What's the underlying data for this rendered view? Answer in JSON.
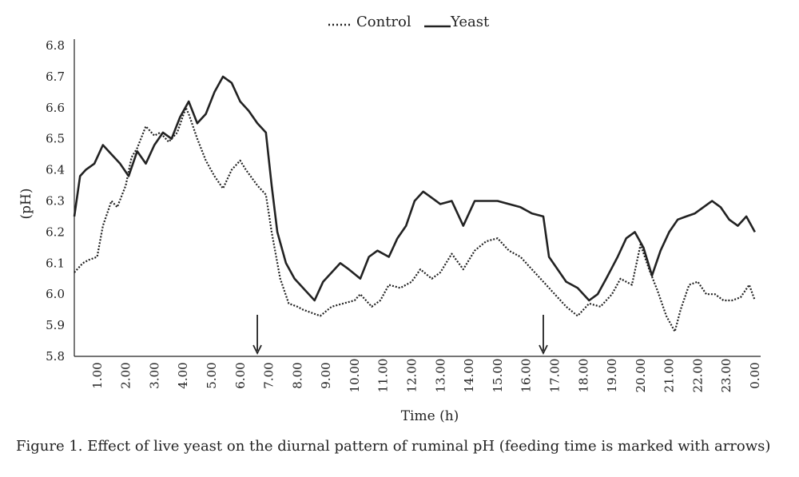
{
  "chart_data": {
    "type": "line",
    "xlabel": "Time (h)",
    "ylabel": "(pH)",
    "ylim": [
      5.8,
      6.8
    ],
    "yticks": [
      "5.8",
      "5.9",
      "6.0",
      "6.1",
      "6.2",
      "6.3",
      "6.4",
      "6.5",
      "6.6",
      "6.7",
      "6.8"
    ],
    "xticks": [
      "1.00",
      "2.00",
      "3.00",
      "4.00",
      "5.00",
      "6.00",
      "7.00",
      "8.00",
      "9.00",
      "10.00",
      "11.00",
      "12.00",
      "13.00",
      "14.00",
      "15.00",
      "16.00",
      "17.00",
      "18.00",
      "19.00",
      "20.00",
      "21.00",
      "22.00",
      "23.00",
      "0.00"
    ],
    "legend_position": "top-center",
    "feeding_times": [
      6.4,
      16.4
    ],
    "series": [
      {
        "name": "Control",
        "style": "dotted",
        "color": "#222222",
        "x": [
          0,
          0.3,
          0.5,
          0.8,
          1.0,
          1.3,
          1.5,
          1.8,
          2.0,
          2.2,
          2.5,
          2.8,
          3.0,
          3.3,
          3.6,
          3.9,
          4.0,
          4.3,
          4.6,
          4.9,
          5.2,
          5.5,
          5.8,
          6.0,
          6.4,
          6.7,
          6.9,
          7.2,
          7.5,
          7.8,
          8.0,
          8.3,
          8.6,
          9.0,
          9.4,
          9.8,
          10.0,
          10.4,
          10.7,
          11.0,
          11.4,
          11.8,
          12.1,
          12.5,
          12.8,
          13.2,
          13.6,
          14.0,
          14.4,
          14.8,
          15.2,
          15.6,
          16.0,
          16.4,
          16.8,
          17.2,
          17.6,
          18.0,
          18.4,
          18.8,
          19.1,
          19.5,
          19.8,
          20.1,
          20.4,
          20.7,
          21.0,
          21.2,
          21.5,
          21.8,
          22.1,
          22.4,
          22.7,
          23.0,
          23.3,
          23.6,
          23.8
        ],
        "y": [
          6.07,
          6.1,
          6.11,
          6.12,
          6.22,
          6.3,
          6.28,
          6.35,
          6.44,
          6.47,
          6.54,
          6.51,
          6.52,
          6.49,
          6.52,
          6.6,
          6.58,
          6.5,
          6.43,
          6.38,
          6.34,
          6.4,
          6.43,
          6.4,
          6.35,
          6.32,
          6.2,
          6.05,
          5.97,
          5.96,
          5.95,
          5.94,
          5.93,
          5.96,
          5.97,
          5.98,
          6.0,
          5.96,
          5.98,
          6.03,
          6.02,
          6.04,
          6.08,
          6.05,
          6.07,
          6.13,
          6.08,
          6.14,
          6.17,
          6.18,
          6.14,
          6.12,
          6.08,
          6.04,
          6.0,
          5.96,
          5.93,
          5.97,
          5.96,
          6.0,
          6.05,
          6.03,
          6.16,
          6.08,
          6.01,
          5.93,
          5.88,
          5.95,
          6.03,
          6.04,
          6.0,
          6.0,
          5.98,
          5.98,
          5.99,
          6.03,
          5.98
        ]
      },
      {
        "name": "Yeast",
        "style": "solid",
        "color": "#222222",
        "x": [
          0,
          0.2,
          0.4,
          0.7,
          1.0,
          1.3,
          1.6,
          1.9,
          2.2,
          2.5,
          2.8,
          3.1,
          3.4,
          3.7,
          4.0,
          4.3,
          4.6,
          4.9,
          5.2,
          5.5,
          5.8,
          6.1,
          6.4,
          6.7,
          6.9,
          7.1,
          7.4,
          7.7,
          8.0,
          8.4,
          8.7,
          9.0,
          9.3,
          9.6,
          10.0,
          10.3,
          10.6,
          11.0,
          11.3,
          11.6,
          11.9,
          12.2,
          12.5,
          12.8,
          13.2,
          13.6,
          14.0,
          14.4,
          14.8,
          15.2,
          15.6,
          16.0,
          16.4,
          16.6,
          16.9,
          17.2,
          17.6,
          18.0,
          18.3,
          18.6,
          19.0,
          19.3,
          19.6,
          19.9,
          20.2,
          20.5,
          20.8,
          21.1,
          21.4,
          21.7,
          22.0,
          22.3,
          22.6,
          22.9,
          23.2,
          23.5,
          23.8
        ],
        "y": [
          6.25,
          6.38,
          6.4,
          6.42,
          6.48,
          6.45,
          6.42,
          6.38,
          6.46,
          6.42,
          6.48,
          6.52,
          6.5,
          6.57,
          6.62,
          6.55,
          6.58,
          6.65,
          6.7,
          6.68,
          6.62,
          6.59,
          6.55,
          6.52,
          6.35,
          6.2,
          6.1,
          6.05,
          6.02,
          5.98,
          6.04,
          6.07,
          6.1,
          6.08,
          6.05,
          6.12,
          6.14,
          6.12,
          6.18,
          6.22,
          6.3,
          6.33,
          6.31,
          6.29,
          6.3,
          6.22,
          6.3,
          6.3,
          6.3,
          6.29,
          6.28,
          6.26,
          6.25,
          6.12,
          6.08,
          6.04,
          6.02,
          5.98,
          6.0,
          6.05,
          6.12,
          6.18,
          6.2,
          6.15,
          6.06,
          6.14,
          6.2,
          6.24,
          6.25,
          6.26,
          6.28,
          6.3,
          6.28,
          6.24,
          6.22,
          6.25,
          6.2
        ]
      }
    ]
  },
  "caption": "Figure 1. Effect of live yeast on the diurnal pattern of ruminal pH (feeding time is marked with arrows)",
  "legend": {
    "control_label": "Control",
    "yeast_label": "Yeast"
  }
}
